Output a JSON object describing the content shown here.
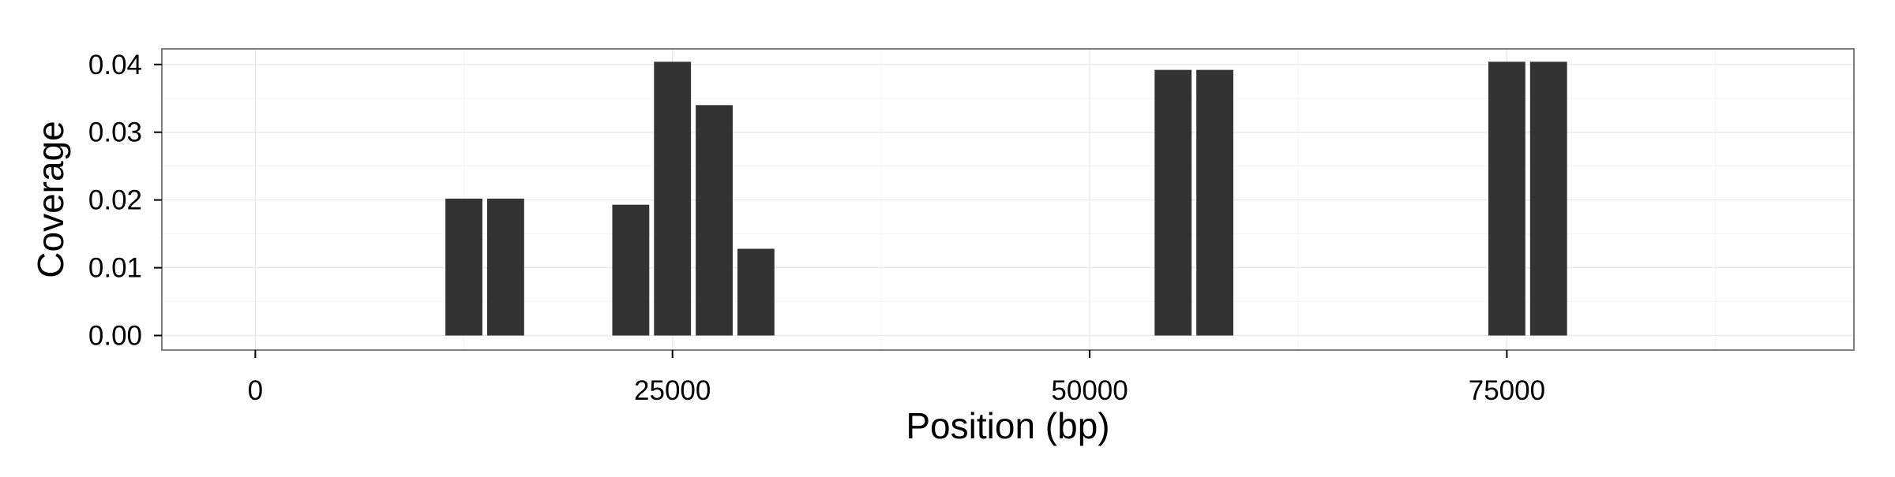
{
  "chart_data": {
    "type": "bar",
    "title": "",
    "xlabel": "Position (bp)",
    "ylabel": "Coverage",
    "xlim": [
      -5600,
      95800
    ],
    "ylim": [
      -0.00215,
      0.0423
    ],
    "x_ticks": [
      0,
      25000,
      50000,
      75000
    ],
    "x_tick_labels": [
      "0",
      "25000",
      "50000",
      "75000"
    ],
    "y_ticks": [
      0.0,
      0.01,
      0.02,
      0.03,
      0.04
    ],
    "y_tick_labels": [
      "0.00",
      "0.01",
      "0.02",
      "0.03",
      "0.04"
    ],
    "grid": true,
    "bar_width": 2500,
    "points": [
      {
        "x": 12500,
        "value": 0.0202
      },
      {
        "x": 15000,
        "value": 0.0202
      },
      {
        "x": 22500,
        "value": 0.0193
      },
      {
        "x": 25000,
        "value": 0.0404
      },
      {
        "x": 27500,
        "value": 0.034
      },
      {
        "x": 30000,
        "value": 0.0128
      },
      {
        "x": 55000,
        "value": 0.0392
      },
      {
        "x": 57500,
        "value": 0.0392
      },
      {
        "x": 75000,
        "value": 0.0404
      },
      {
        "x": 77500,
        "value": 0.0404
      }
    ],
    "colors": {
      "bar": "#333333",
      "panel_border": "#7f7f7f",
      "grid_major": "#ebebeb",
      "grid_minor": "#f5f5f5",
      "tick": "#000000",
      "text": "#000000"
    }
  }
}
